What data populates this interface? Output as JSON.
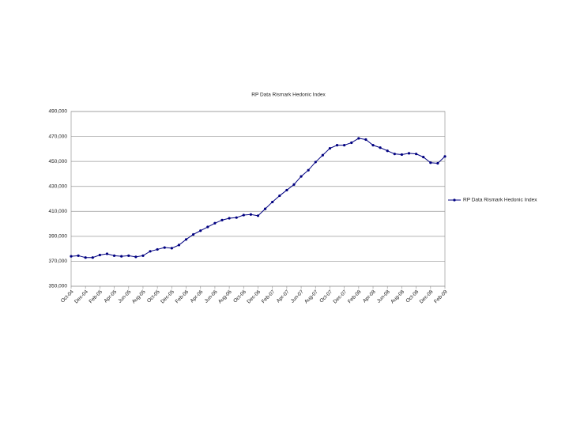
{
  "chart_data": {
    "type": "line",
    "title": "RP Data Rismark Hedonic Index",
    "categories": [
      "Oct-04",
      null,
      "Dec-04",
      null,
      "Feb-05",
      null,
      "Apr-05",
      null,
      "Jun-05",
      null,
      "Aug-05",
      null,
      "Oct-05",
      null,
      "Dec-05",
      null,
      "Feb-06",
      null,
      "Apr-06",
      null,
      "Jun-06",
      null,
      "Aug-06",
      null,
      "Oct-06",
      null,
      "Dec-06",
      null,
      "Feb-07",
      null,
      "Apr-07",
      null,
      "Jun-07",
      null,
      "Aug-07",
      null,
      "Oct-07",
      null,
      "Dec-07",
      null,
      "Feb-08",
      null,
      "Apr-08",
      null,
      "Jun-08",
      null,
      "Aug-08",
      null,
      "Oct-08",
      null,
      "Dec-08",
      null,
      "Feb-09"
    ],
    "series": [
      {
        "name": "RP Data Rismark Hedonic Index",
        "color": "#000080",
        "values": [
          374000,
          374500,
          373000,
          373000,
          375000,
          376000,
          374500,
          374000,
          374500,
          373500,
          374500,
          378000,
          379500,
          381000,
          380500,
          383000,
          387500,
          391500,
          394500,
          397500,
          400500,
          403000,
          404500,
          405000,
          407000,
          407500,
          406500,
          412000,
          417500,
          422500,
          427000,
          431500,
          438000,
          443000,
          449500,
          455000,
          460500,
          463000,
          463000,
          465000,
          468500,
          467500,
          463000,
          461000,
          458500,
          456000,
          455500,
          456500,
          456000,
          453500,
          449000,
          448500,
          454000
        ]
      }
    ],
    "ylim": [
      350000,
      490000
    ],
    "yticks": [
      {
        "value": 350000,
        "label": "350,000"
      },
      {
        "value": 370000,
        "label": "370,000"
      },
      {
        "value": 390000,
        "label": "390,000"
      },
      {
        "value": 410000,
        "label": "410,000"
      },
      {
        "value": 430000,
        "label": "430,000"
      },
      {
        "value": 450000,
        "label": "450,000"
      },
      {
        "value": 470000,
        "label": "470,000"
      },
      {
        "value": 490000,
        "label": "490,000"
      }
    ],
    "grid": true,
    "legend": "right"
  }
}
